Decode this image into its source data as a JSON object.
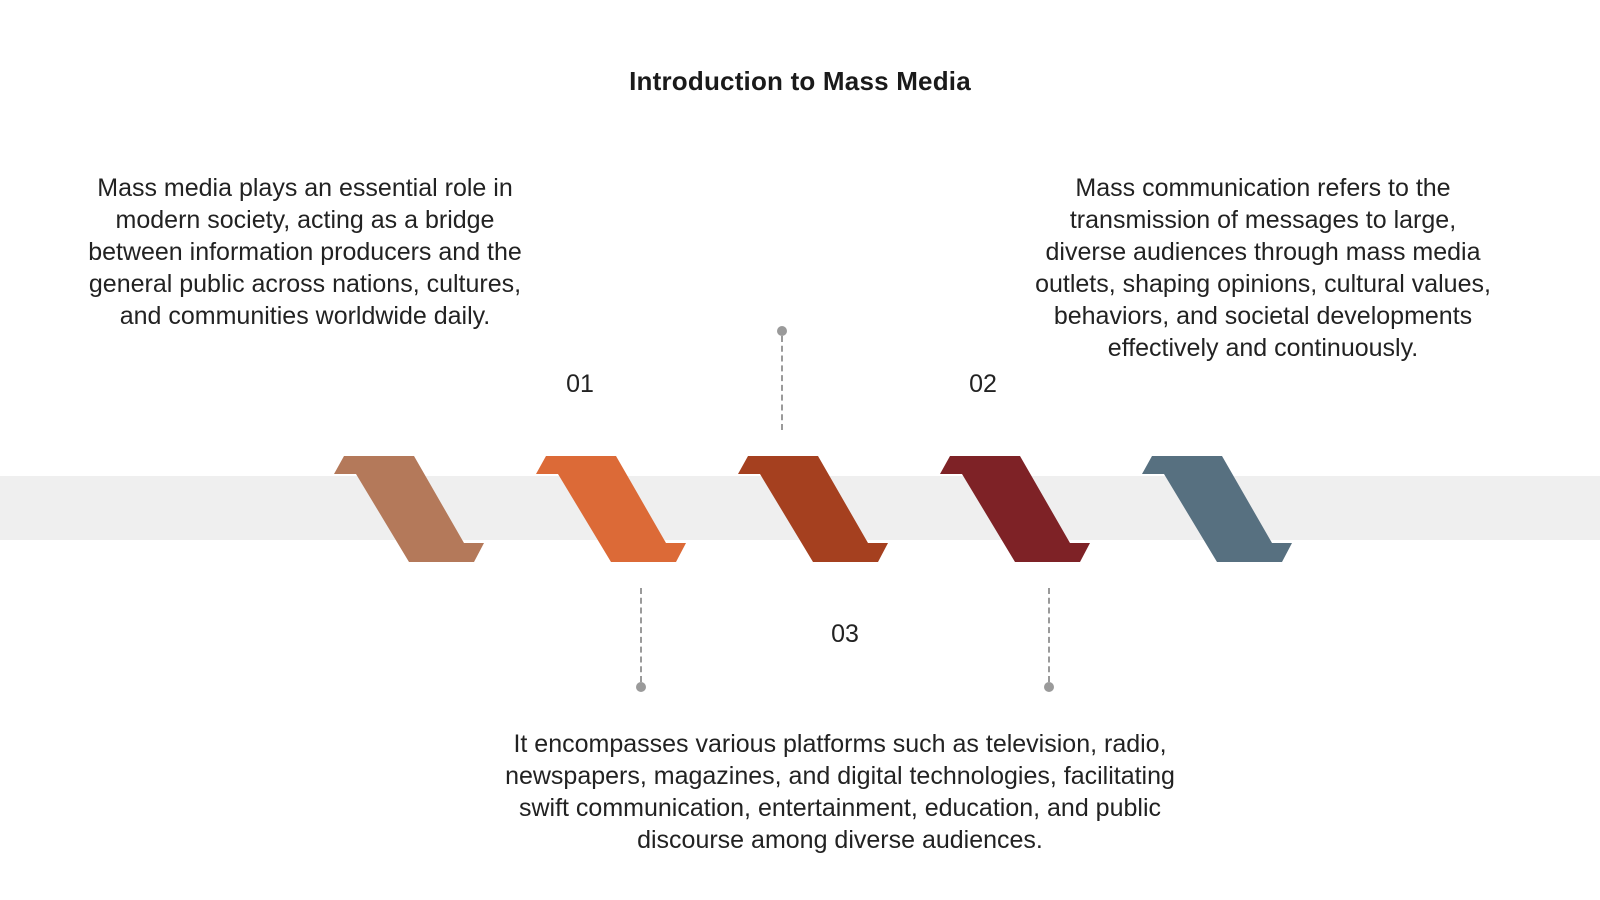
{
  "title": "Introduction to Mass Media",
  "steps": [
    {
      "number": "01",
      "text": "Mass media plays an essential role in modern society, acting as a bridge between information producers and the general public across nations, cultures, and communities worldwide daily."
    },
    {
      "number": "02",
      "text": "Mass communication refers to the transmission of messages to large, diverse audiences through mass media outlets, shaping opinions, cultural values, behaviors, and societal developments effectively and continuously."
    },
    {
      "number": "03",
      "text": "It encompasses various platforms such as television, radio, newspapers, magazines, and digital technologies, facilitating swift communication, entertainment, education, and public discourse among diverse audiences."
    }
  ],
  "colors": {
    "chevron_1": "#b4795a",
    "chevron_2": "#dc6a37",
    "chevron_3": "#a5401f",
    "chevron_4": "#7e2226",
    "chevron_5": "#577080",
    "band": "#efefef",
    "connector": "#9a9a9a"
  }
}
